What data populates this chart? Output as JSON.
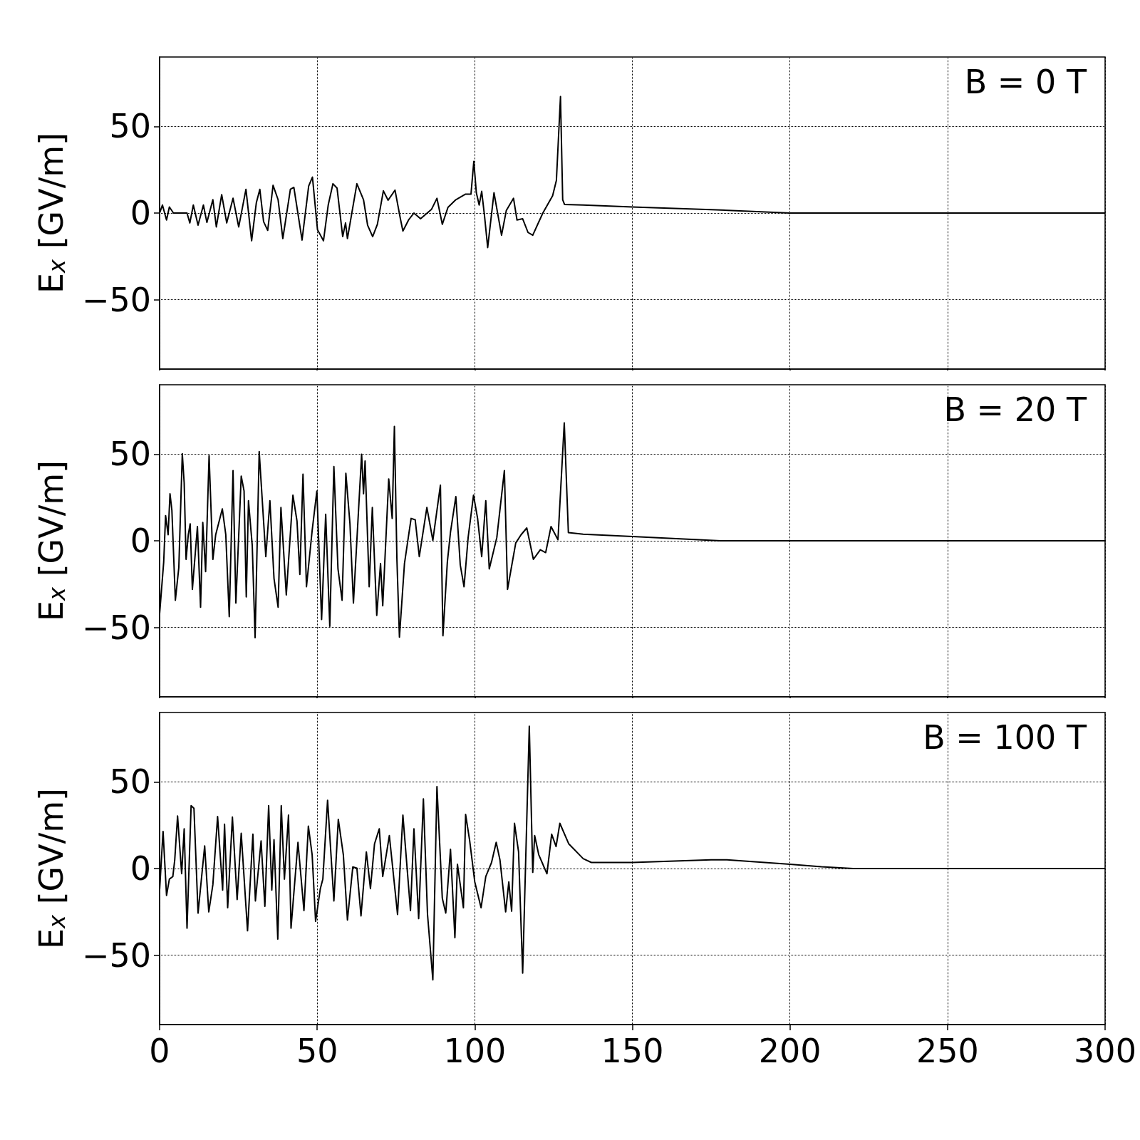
{
  "chart_data": [
    {
      "type": "line",
      "ylabel": "E$_{x}$ [GV/m]",
      "annotations": [
        "B = 0 T"
      ],
      "xlim": [
        0,
        300
      ],
      "xticks": [
        0,
        50,
        100,
        150,
        200,
        250,
        300
      ],
      "ylim": [
        -90,
        90
      ],
      "yticks": [
        -50,
        0,
        50
      ],
      "grid": true,
      "tick_labels": "y",
      "series": [
        {
          "color": "#000000",
          "x": [
            0,
            0.9,
            2.2,
            3.1,
            4.4,
            8.7,
            9.6,
            10.7,
            12.2,
            13.9,
            15,
            16.9,
            18,
            19.7,
            21.3,
            23.3,
            25.1,
            27.4,
            29.2,
            30.7,
            31.8,
            33,
            34.3,
            36,
            37.6,
            39.1,
            41.5,
            42.6,
            45.2,
            47.3,
            48.5,
            50.1,
            52,
            53.5,
            55,
            56.3,
            58.1,
            59,
            59.6,
            62.6,
            64.7,
            66,
            67.6,
            69.1,
            71,
            72.5,
            74.7,
            76.4,
            77.2,
            79,
            80.7,
            82.8,
            86.3,
            88,
            89.7,
            91.5,
            94,
            97.1,
            98.8,
            99.7,
            100.5,
            101.4,
            102.2,
            103.1,
            104.1,
            106.1,
            108.5,
            110,
            112.3,
            113.4,
            115.2,
            116.9,
            118.4,
            121.6,
            124.7,
            125.9,
            127.2,
            127.9,
            128.5,
            134.4,
            150,
            175,
            200,
            300
          ],
          "values": [
            0,
            4.6,
            -4,
            3.5,
            0,
            0,
            -5.7,
            4.6,
            -7,
            4.6,
            -5.4,
            7.7,
            -8,
            10.6,
            -5.7,
            8.5,
            -8,
            13.7,
            -16,
            6,
            13.7,
            -5,
            -10,
            16,
            7.7,
            -14.7,
            13.7,
            14.8,
            -15.6,
            15.6,
            20.7,
            -9.6,
            -16,
            4.6,
            16.9,
            14.4,
            -13.6,
            -5.7,
            -14.7,
            16.9,
            7.7,
            -7,
            -13.6,
            -6.5,
            12.8,
            7.4,
            13.2,
            -3.3,
            -10.4,
            -4,
            0,
            -3.3,
            2.2,
            8.5,
            -6.5,
            3.3,
            7.7,
            10.9,
            10.9,
            29.8,
            11.7,
            4.6,
            12.5,
            -1.7,
            -19.9,
            11.7,
            -12.8,
            1.4,
            8.5,
            -4,
            -3.3,
            -11.2,
            -12.8,
            0,
            10,
            18.8,
            67.2,
            7.7,
            4.9,
            4.6,
            3.5,
            2,
            0,
            0
          ]
        }
      ]
    },
    {
      "type": "line",
      "ylabel": "E$_{x}$ [GV/m]",
      "annotations": [
        "B = 20 T"
      ],
      "xlim": [
        0,
        300
      ],
      "xticks": [
        0,
        50,
        100,
        150,
        200,
        250,
        300
      ],
      "ylim": [
        -90,
        90
      ],
      "yticks": [
        -50,
        0,
        50
      ],
      "grid": true,
      "tick_labels": "y",
      "series": [
        {
          "color": "#000000",
          "x": [
            0,
            1.3,
            1.9,
            2.7,
            3.3,
            3.9,
            5,
            6.1,
            7.2,
            7.8,
            8.4,
            9.1,
            9.7,
            10.4,
            12,
            13,
            13.7,
            14.6,
            15.7,
            16.9,
            17.8,
            18.9,
            19.9,
            21,
            22.1,
            23.3,
            24.2,
            25.9,
            26.8,
            27.5,
            28.2,
            29.4,
            30.3,
            31.6,
            33.7,
            35,
            36.3,
            37.6,
            38.5,
            40.2,
            42.3,
            43.6,
            44.5,
            45.5,
            46.6,
            48.4,
            49.9,
            51.4,
            52.7,
            54,
            55.3,
            56.6,
            57.9,
            59.1,
            60.4,
            61.5,
            64.1,
            64.7,
            65.2,
            66.5,
            67.5,
            68.9,
            70.1,
            70.8,
            72.7,
            73.8,
            74.5,
            75.3,
            76.1,
            77.7,
            79.8,
            81.1,
            82.4,
            84.8,
            86.7,
            89.1,
            89.9,
            91.3,
            92.3,
            94,
            95.4,
            96.6,
            97.9,
            99.6,
            100.9,
            102.2,
            103.5,
            104.6,
            107,
            109.4,
            110.4,
            111.7,
            113,
            114.7,
            116.5,
            118.6,
            120.8,
            122.5,
            124.2,
            126.4,
            128.4,
            129.7,
            134.4,
            150,
            178,
            300
          ],
          "values": [
            -42.2,
            -12.3,
            14.5,
            3.5,
            27.1,
            17.6,
            -34.3,
            -15.4,
            50.2,
            33.4,
            -10.7,
            3.5,
            9.8,
            -28,
            8.2,
            -38.3,
            10.6,
            -17.8,
            49.1,
            -10.7,
            3.5,
            11.3,
            18.4,
            3.5,
            -43.8,
            40.5,
            -35.9,
            37.3,
            28.7,
            -32.4,
            23.1,
            -2.8,
            -55.9,
            51.5,
            -9.1,
            23.1,
            -21.7,
            -38.3,
            19.2,
            -31.2,
            26.3,
            11.3,
            -19.4,
            38.4,
            -26.5,
            5.8,
            28.7,
            -45.4,
            15.3,
            -49.3,
            42.8,
            -16.2,
            -34.3,
            38.9,
            9.8,
            -35.9,
            49.9,
            27.1,
            46,
            -26.5,
            19.2,
            -43,
            -13.1,
            -37.5,
            35.7,
            12.9,
            66,
            -10.7,
            -55.6,
            -13.1,
            12.9,
            12.1,
            -9.1,
            19.2,
            0.3,
            32.1,
            -54.8,
            -12.3,
            5,
            25.5,
            -13.9,
            -26.5,
            1.9,
            26.3,
            12.9,
            -9.1,
            23.1,
            -16.2,
            1.9,
            40.5,
            -28,
            -14.6,
            -1.3,
            3.5,
            7.4,
            -10.7,
            -5.2,
            -6.8,
            8.2,
            0.6,
            68,
            4.7,
            3.8,
            2.5,
            0,
            0
          ]
        }
      ]
    },
    {
      "type": "line",
      "ylabel": "E$_{x}$ [GV/m]",
      "annotations": [
        "B = 100 T"
      ],
      "xlim": [
        0,
        300
      ],
      "xticks": [
        0,
        50,
        100,
        150,
        200,
        250,
        300
      ],
      "ylim": [
        -90,
        90
      ],
      "yticks": [
        -50,
        0,
        50
      ],
      "grid": true,
      "series": [
        {
          "color": "#000000",
          "x": [
            0,
            1.1,
            2.2,
            3.1,
            4.2,
            4.8,
            5.7,
            7,
            7.8,
            8.7,
            10,
            10.9,
            12.2,
            14.3,
            15.6,
            16.9,
            18.4,
            20,
            20.6,
            21.6,
            23.1,
            24.6,
            25.9,
            27.9,
            29.6,
            30.4,
            32.2,
            33.4,
            34.6,
            35.6,
            36.3,
            37.5,
            38.6,
            39.6,
            40.9,
            41.7,
            43.9,
            45.8,
            47.2,
            48.4,
            49.5,
            51,
            51.8,
            53.3,
            55.3,
            56.7,
            58.3,
            59.6,
            61.3,
            62.6,
            63.9,
            65.6,
            66.9,
            68.2,
            69.7,
            70.8,
            72.9,
            75.5,
            77.2,
            79.6,
            80.7,
            82.2,
            83.7,
            85,
            86.7,
            88,
            89.7,
            90.8,
            92.3,
            93.7,
            94.5,
            96.4,
            97.1,
            98.4,
            100,
            102,
            103.5,
            105.3,
            106.8,
            108,
            109.8,
            110.8,
            111.7,
            112.6,
            113.9,
            115.2,
            117.3,
            118.4,
            119,
            120.3,
            122.9,
            124.4,
            125.8,
            127,
            129.8,
            134.4,
            137,
            150,
            175,
            180,
            200,
            210,
            220,
            300
          ],
          "values": [
            -12.4,
            21.4,
            -15.5,
            -6.1,
            -4.6,
            4.9,
            30.3,
            -3,
            22.9,
            -34.4,
            36.3,
            34.7,
            -25.7,
            13,
            -25,
            -9.3,
            30,
            -12.4,
            25.6,
            -22.6,
            29.7,
            -17.9,
            20.3,
            -35.9,
            19.8,
            -18.7,
            15.9,
            -21.8,
            36.3,
            -12.4,
            16.6,
            -40.7,
            36.3,
            -6.1,
            30.8,
            -34.4,
            15.1,
            -24.2,
            24.5,
            8,
            -30.5,
            -11.6,
            -6.1,
            39.4,
            -18.7,
            28.4,
            8,
            -29.7,
            0.9,
            0.2,
            -27.3,
            9.6,
            -11.6,
            14.3,
            22.9,
            -4.6,
            19,
            -26.5,
            30.8,
            -24.2,
            22.9,
            -28.9,
            40.2,
            -26.2,
            -64.2,
            47.3,
            -17.1,
            -25.7,
            11.1,
            -39.9,
            2.5,
            -22.6,
            31.2,
            15.9,
            -7.7,
            -22.6,
            -4.6,
            3.3,
            15.1,
            4.9,
            -25,
            -7.7,
            -24.6,
            26.1,
            9.6,
            -60.3,
            82.1,
            -2.2,
            19,
            8,
            -3,
            19.8,
            12.7,
            26.1,
            14.3,
            5.7,
            3.5,
            3.5,
            5,
            5,
            2.5,
            1,
            0,
            0
          ]
        }
      ]
    }
  ]
}
